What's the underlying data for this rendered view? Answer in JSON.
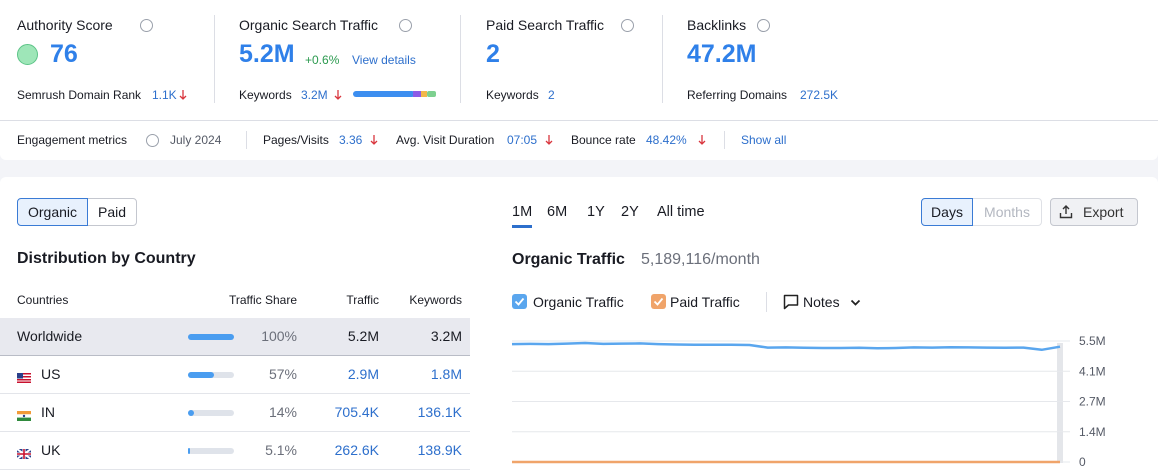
{
  "metrics": [
    {
      "title": "Authority Score",
      "value": "76",
      "sub_label": "Semrush Domain Rank",
      "sub_value": "1.1K"
    },
    {
      "title": "Organic Search Traffic",
      "value": "5.2M",
      "change": "+0.6%",
      "link": "View details",
      "sub_label": "Keywords",
      "sub_value": "3.2M"
    },
    {
      "title": "Paid Search Traffic",
      "value": "2",
      "sub_label": "Keywords",
      "sub_value": "2"
    },
    {
      "title": "Backlinks",
      "value": "47.2M",
      "sub_label": "Referring Domains",
      "sub_value": "272.5K"
    }
  ],
  "engagement": {
    "label": "Engagement metrics",
    "period": "July 2024",
    "items": [
      {
        "label": "Pages/Visits",
        "value": "3.36"
      },
      {
        "label": "Avg. Visit Duration",
        "value": "07:05"
      },
      {
        "label": "Bounce rate",
        "value": "48.42%"
      }
    ],
    "show_all": "Show all"
  },
  "traffic_toggle": [
    "Organic",
    "Paid"
  ],
  "distribution": {
    "title": "Distribution by Country",
    "columns": [
      "Countries",
      "Traffic Share",
      "Traffic",
      "Keywords"
    ],
    "rows": [
      {
        "country": "Worldwide",
        "share": {
          "value": 100,
          "label": "100%"
        },
        "traffic": "5.2M",
        "keywords": "3.2M"
      },
      {
        "country": "US",
        "share": {
          "value": 57,
          "label": "57%"
        },
        "traffic": "2.9M",
        "keywords": "1.8M"
      },
      {
        "country": "IN",
        "share": {
          "value": 14,
          "label": "14%"
        },
        "traffic": "705.4K",
        "keywords": "136.1K"
      },
      {
        "country": "UK",
        "share": {
          "value": 5.1,
          "label": "5.1%"
        },
        "traffic": "262.6K",
        "keywords": "138.9K"
      }
    ]
  },
  "periods": [
    "1M",
    "6M",
    "1Y",
    "2Y",
    "All time"
  ],
  "granularity": [
    "Days",
    "Months"
  ],
  "export": "Export",
  "traffic_chart": {
    "type": "line",
    "title": "Organic Traffic",
    "subtitle": "5,189,116/month",
    "notes": "Notes",
    "ylim": [
      0,
      5500000
    ],
    "yticks": [
      0,
      {
        "value": 1375000,
        "label": "1.4M"
      },
      {
        "value": 2750000,
        "label": "2.7M"
      },
      {
        "value": 4125000,
        "label": "4.1M"
      },
      {
        "value": 5500000,
        "label": "5.5M"
      }
    ],
    "grid": true,
    "series": [
      {
        "name": "Organic Traffic",
        "color": "#5aa6ee",
        "values": [
          5360000,
          5370000,
          5360000,
          5380000,
          5410000,
          5370000,
          5380000,
          5390000,
          5360000,
          5340000,
          5330000,
          5330000,
          5330000,
          5320000,
          5200000,
          5210000,
          5190000,
          5180000,
          5180000,
          5190000,
          5170000,
          5180000,
          5210000,
          5200000,
          5220000,
          5210000,
          5200000,
          5190000,
          5200000,
          5100000,
          5240000
        ]
      },
      {
        "name": "Paid Traffic",
        "color": "#f0a46a",
        "values": [
          2,
          2,
          2,
          2,
          2,
          2,
          2,
          2,
          2,
          2,
          2,
          2,
          2,
          2,
          2,
          2,
          2,
          2,
          2,
          2,
          2,
          2,
          2,
          2,
          2,
          2,
          2,
          2,
          2,
          2,
          2
        ]
      }
    ]
  }
}
